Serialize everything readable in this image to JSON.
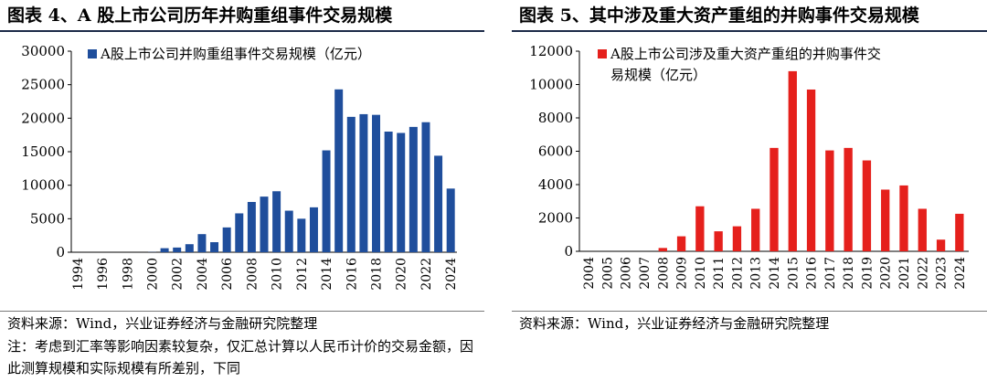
{
  "left": {
    "title": "图表 4、A 股上市公司历年并购重组事件交易规模",
    "source": "资料来源：Wind，兴业证券经济与金融研究院整理",
    "note": "注：考虑到汇率等影响因素较复杂，仅汇总计算以人民币计价的交易金额，因此测算规模和实际规模有所差别，下同"
  },
  "right": {
    "title": "图表 5、其中涉及重大资产重组的并购事件交易规模",
    "source": "资料来源：Wind，兴业证券经济与金融研究院整理"
  },
  "colors": {
    "blue": "#1f4e9c",
    "red": "#e5201c",
    "rule": "#1c2a48"
  },
  "chart_data": [
    {
      "type": "bar",
      "title": "图表 4、A 股上市公司历年并购重组事件交易规模",
      "legend": "A股上市公司并购重组事件交易规模（亿元）",
      "legend_lines": [
        "A股上市公司并购重组事件交易规模（亿元）"
      ],
      "legend_position": "top-left",
      "categories": [
        "1994",
        "1995",
        "1996",
        "1997",
        "1998",
        "1999",
        "2000",
        "2001",
        "2002",
        "2003",
        "2004",
        "2005",
        "2006",
        "2007",
        "2008",
        "2009",
        "2010",
        "2011",
        "2012",
        "2013",
        "2014",
        "2015",
        "2016",
        "2017",
        "2018",
        "2019",
        "2020",
        "2021",
        "2022",
        "2023",
        "2024"
      ],
      "tick_labels": [
        "1994",
        "1996",
        "1998",
        "2000",
        "2002",
        "2004",
        "2006",
        "2008",
        "2010",
        "2012",
        "2014",
        "2016",
        "2018",
        "2020",
        "2022",
        "2024"
      ],
      "values": [
        0,
        0,
        0,
        0,
        0,
        0,
        30,
        600,
        700,
        1200,
        2700,
        1500,
        3700,
        5800,
        7500,
        8300,
        9100,
        6200,
        5000,
        6700,
        15200,
        24300,
        20200,
        20600,
        20500,
        18000,
        17800,
        18700,
        19400,
        14400,
        9500
      ],
      "y_ticks": [
        "0",
        "5000",
        "10000",
        "15000",
        "20000",
        "25000",
        "30000"
      ],
      "ylim": [
        0,
        30000
      ],
      "xlabel": "",
      "ylabel": "",
      "grid": false
    },
    {
      "type": "bar",
      "title": "图表 5、其中涉及重大资产重组的并购事件交易规模",
      "legend": "A股上市公司涉及重大资产重组的并购事件交易规模（亿元）",
      "legend_lines": [
        "A股上市公司涉及重大资产重组的并购事件交",
        "易规模（亿元）"
      ],
      "legend_position": "top-left",
      "categories": [
        "2004",
        "2005",
        "2006",
        "2007",
        "2008",
        "2009",
        "2010",
        "2011",
        "2012",
        "2013",
        "2014",
        "2015",
        "2016",
        "2017",
        "2018",
        "2019",
        "2020",
        "2021",
        "2022",
        "2023",
        "2024"
      ],
      "tick_labels": [
        "2004",
        "2005",
        "2006",
        "2007",
        "2008",
        "2009",
        "2010",
        "2011",
        "2012",
        "2013",
        "2014",
        "2015",
        "2016",
        "2017",
        "2018",
        "2019",
        "2020",
        "2021",
        "2022",
        "2023",
        "2024"
      ],
      "values": [
        0,
        0,
        0,
        0,
        200,
        900,
        2700,
        1200,
        1500,
        2550,
        6200,
        10800,
        9700,
        6050,
        6200,
        5450,
        3700,
        3950,
        2550,
        700,
        2250
      ],
      "y_ticks": [
        "0",
        "2000",
        "4000",
        "6000",
        "8000",
        "10000",
        "12000"
      ],
      "ylim": [
        0,
        12000
      ],
      "xlabel": "",
      "ylabel": "",
      "grid": false
    }
  ]
}
